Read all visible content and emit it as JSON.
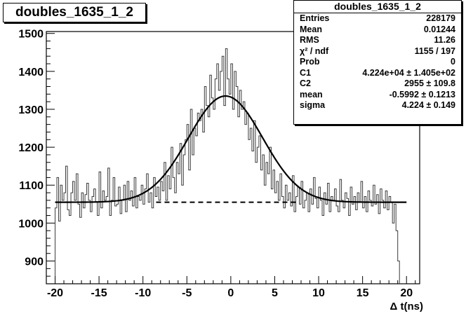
{
  "chart_data": {
    "type": "histogram",
    "title": "doubles_1635_1_2",
    "xlabel": "Δ t(ns)",
    "ylabel": "",
    "xlim": [
      -21,
      21.5
    ],
    "ylim": [
      840,
      1505
    ],
    "x_ticks": [
      -20,
      -15,
      -10,
      -5,
      0,
      5,
      10,
      15,
      20
    ],
    "y_ticks": [
      900,
      1000,
      1100,
      1200,
      1300,
      1400,
      1500
    ],
    "histogram": {
      "x_start": -20,
      "bin_width": 0.2,
      "values": [
        1040,
        1120,
        1005,
        1100,
        1060,
        1080,
        1150,
        1035,
        1020,
        1080,
        1110,
        1060,
        1130,
        1050,
        1015,
        1080,
        1040,
        1075,
        1105,
        1060,
        1030,
        1070,
        1090,
        1055,
        1020,
        1135,
        1040,
        1085,
        1060,
        1070,
        1145,
        1020,
        1060,
        1120,
        1045,
        1050,
        1095,
        1025,
        1060,
        1100,
        1030,
        1110,
        1060,
        1085,
        1045,
        1120,
        1040,
        1070,
        1060,
        1100,
        1050,
        1090,
        1130,
        1055,
        1080,
        1040,
        1120,
        1070,
        1095,
        1060,
        1110,
        1085,
        1160,
        1060,
        1125,
        1090,
        1200,
        1120,
        1080,
        1160,
        1130,
        1210,
        1100,
        1180,
        1220,
        1260,
        1140,
        1300,
        1180,
        1250,
        1230,
        1290,
        1270,
        1300,
        1240,
        1360,
        1310,
        1280,
        1390,
        1330,
        1300,
        1380,
        1420,
        1350,
        1400,
        1440,
        1310,
        1460,
        1380,
        1340,
        1420,
        1300,
        1400,
        1360,
        1280,
        1350,
        1300,
        1320,
        1260,
        1290,
        1220,
        1250,
        1190,
        1270,
        1160,
        1200,
        1230,
        1140,
        1180,
        1100,
        1160,
        1130,
        1200,
        1090,
        1140,
        1080,
        1110,
        1060,
        1130,
        1070,
        1040,
        1100,
        1060,
        1080,
        1045,
        1125,
        1030,
        1070,
        1095,
        1050,
        1110,
        1040,
        1060,
        1080,
        1030,
        1090,
        1050,
        1120,
        1065,
        1040,
        1095,
        1060,
        1020,
        1080,
        1050,
        1105,
        1030,
        1070,
        1060,
        1090,
        1045,
        1030,
        1115,
        1060,
        1040,
        1080,
        1065,
        1020,
        1095,
        1050,
        1070,
        1035,
        1080,
        1055,
        1110,
        1040,
        1070,
        1030,
        1085,
        1060,
        1045,
        1100,
        1050,
        1075,
        1025,
        1090,
        1060,
        1040,
        1085,
        1035,
        1070,
        1055,
        1000,
        1050,
        980,
        900
      ]
    },
    "fit": {
      "baseline": 1055,
      "amplitude": 280,
      "mean": -0.5992,
      "sigma": 4.224,
      "x_range": [
        -20,
        20
      ],
      "baseline_dashed_range": [
        -8.5,
        7.5
      ]
    },
    "stats": {
      "title": "doubles_1635_1_2",
      "rows": [
        {
          "key": "Entries",
          "value": "228179"
        },
        {
          "key": "Mean",
          "value": "0.01244"
        },
        {
          "key": "RMS",
          "value": "11.26"
        },
        {
          "key": "χ² / ndf",
          "value": "1155 / 197"
        },
        {
          "key": "Prob",
          "value": "0"
        },
        {
          "key": "C1",
          "value": "4.224e+04 ± 1.405e+02"
        },
        {
          "key": "C2",
          "value": "2955 ± 109.8"
        },
        {
          "key": "mean",
          "value": "-0.5992 ± 0.1213"
        },
        {
          "key": "sigma",
          "value": "4.224 ± 0.149"
        }
      ]
    }
  }
}
